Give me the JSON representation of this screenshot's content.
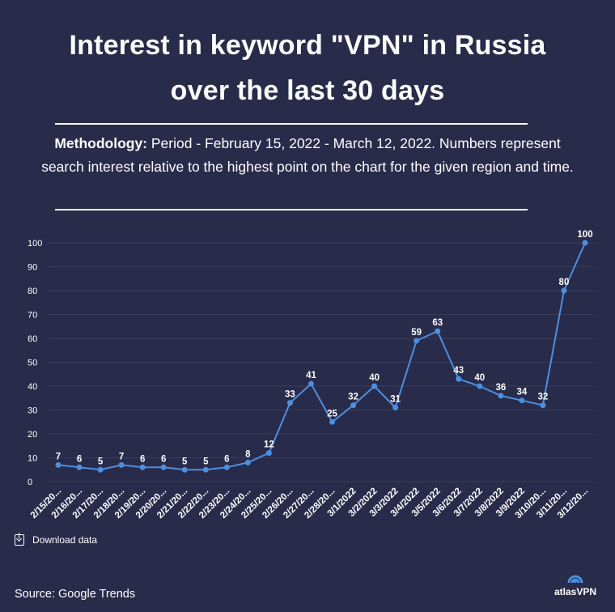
{
  "header": {
    "title_line1": "Interest in keyword \"VPN\" in Russia",
    "title_line2": "over the last 30 days",
    "methodology_label": "Methodology:",
    "methodology_text": " Period - February 15, 2022 - March 12, 2022. Numbers represent search interest relative to the highest point on the chart for the given region and time."
  },
  "footer": {
    "download_label": "Download data",
    "download_icon": "download-icon",
    "source": "Source: Google Trends",
    "logo_text": "atlasVPN",
    "logo_icon": "atlasvpn-logo-icon"
  },
  "colors": {
    "background": "#292b4a",
    "line": "#4a90e2",
    "text": "#ffffff",
    "grid": "#3a3c5c"
  },
  "chart_data": {
    "type": "line",
    "title": "",
    "xlabel": "",
    "ylabel": "",
    "ylim": [
      0,
      100
    ],
    "yticks": [
      0,
      10,
      20,
      30,
      40,
      50,
      60,
      70,
      80,
      90,
      100
    ],
    "grid": true,
    "legend": "none",
    "categories": [
      "2/15/20...",
      "2/16/20...",
      "2/17/20...",
      "2/18/20...",
      "2/19/20...",
      "2/20/20...",
      "2/21/20...",
      "2/22/20...",
      "2/23/20...",
      "2/24/20...",
      "2/25/20...",
      "2/26/20...",
      "2/27/20...",
      "2/28/20...",
      "3/1/2022",
      "3/2/2022",
      "3/3/2022",
      "3/4/2022",
      "3/5/2022",
      "3/6/2022",
      "3/7/2022",
      "3/8/2022",
      "3/9/2022",
      "3/10/20...",
      "3/11/20...",
      "3/12/20..."
    ],
    "series": [
      {
        "values": [
          7,
          6,
          5,
          7,
          6,
          6,
          5,
          5,
          6,
          8,
          12,
          33,
          41,
          25,
          32,
          40,
          31,
          59,
          63,
          43,
          40,
          36,
          34,
          32,
          80,
          100
        ]
      }
    ]
  }
}
